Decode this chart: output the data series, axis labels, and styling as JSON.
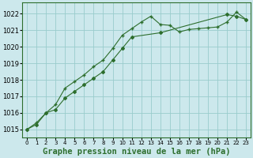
{
  "title": "Graphe pression niveau de la mer (hPa)",
  "background_color": "#cce8ec",
  "grid_color": "#99cccc",
  "line_color": "#2d6e2d",
  "spine_color": "#2d6e2d",
  "xlim": [
    -0.5,
    23.5
  ],
  "ylim": [
    1014.5,
    1022.7
  ],
  "yticks": [
    1015,
    1016,
    1017,
    1018,
    1019,
    1020,
    1021,
    1022
  ],
  "xticks": [
    0,
    1,
    2,
    3,
    4,
    5,
    6,
    7,
    8,
    9,
    10,
    11,
    12,
    13,
    14,
    15,
    16,
    17,
    18,
    19,
    20,
    21,
    22,
    23
  ],
  "series1_x": [
    0,
    1,
    2,
    3,
    4,
    5,
    6,
    7,
    8,
    9,
    10,
    11,
    12,
    13,
    14,
    15,
    16,
    17,
    18,
    19,
    20,
    21,
    22,
    23
  ],
  "series1_y": [
    1015.0,
    1015.4,
    1016.0,
    1016.5,
    1017.5,
    1017.9,
    1018.3,
    1018.8,
    1019.2,
    1019.9,
    1020.7,
    1021.1,
    1021.5,
    1021.85,
    1021.35,
    1021.3,
    1020.9,
    1021.05,
    1021.1,
    1021.15,
    1021.2,
    1021.5,
    1022.1,
    1021.65
  ],
  "series2_x": [
    0,
    1,
    2,
    3,
    4,
    5,
    6,
    7,
    8,
    9,
    10,
    11,
    14,
    21,
    22,
    23
  ],
  "series2_y": [
    1015.0,
    1015.3,
    1016.0,
    1016.2,
    1016.9,
    1017.3,
    1017.7,
    1018.1,
    1018.5,
    1019.2,
    1019.9,
    1020.6,
    1020.85,
    1021.95,
    1021.85,
    1021.65
  ],
  "title_fontsize": 7.5,
  "tick_fontsize": 6.0
}
